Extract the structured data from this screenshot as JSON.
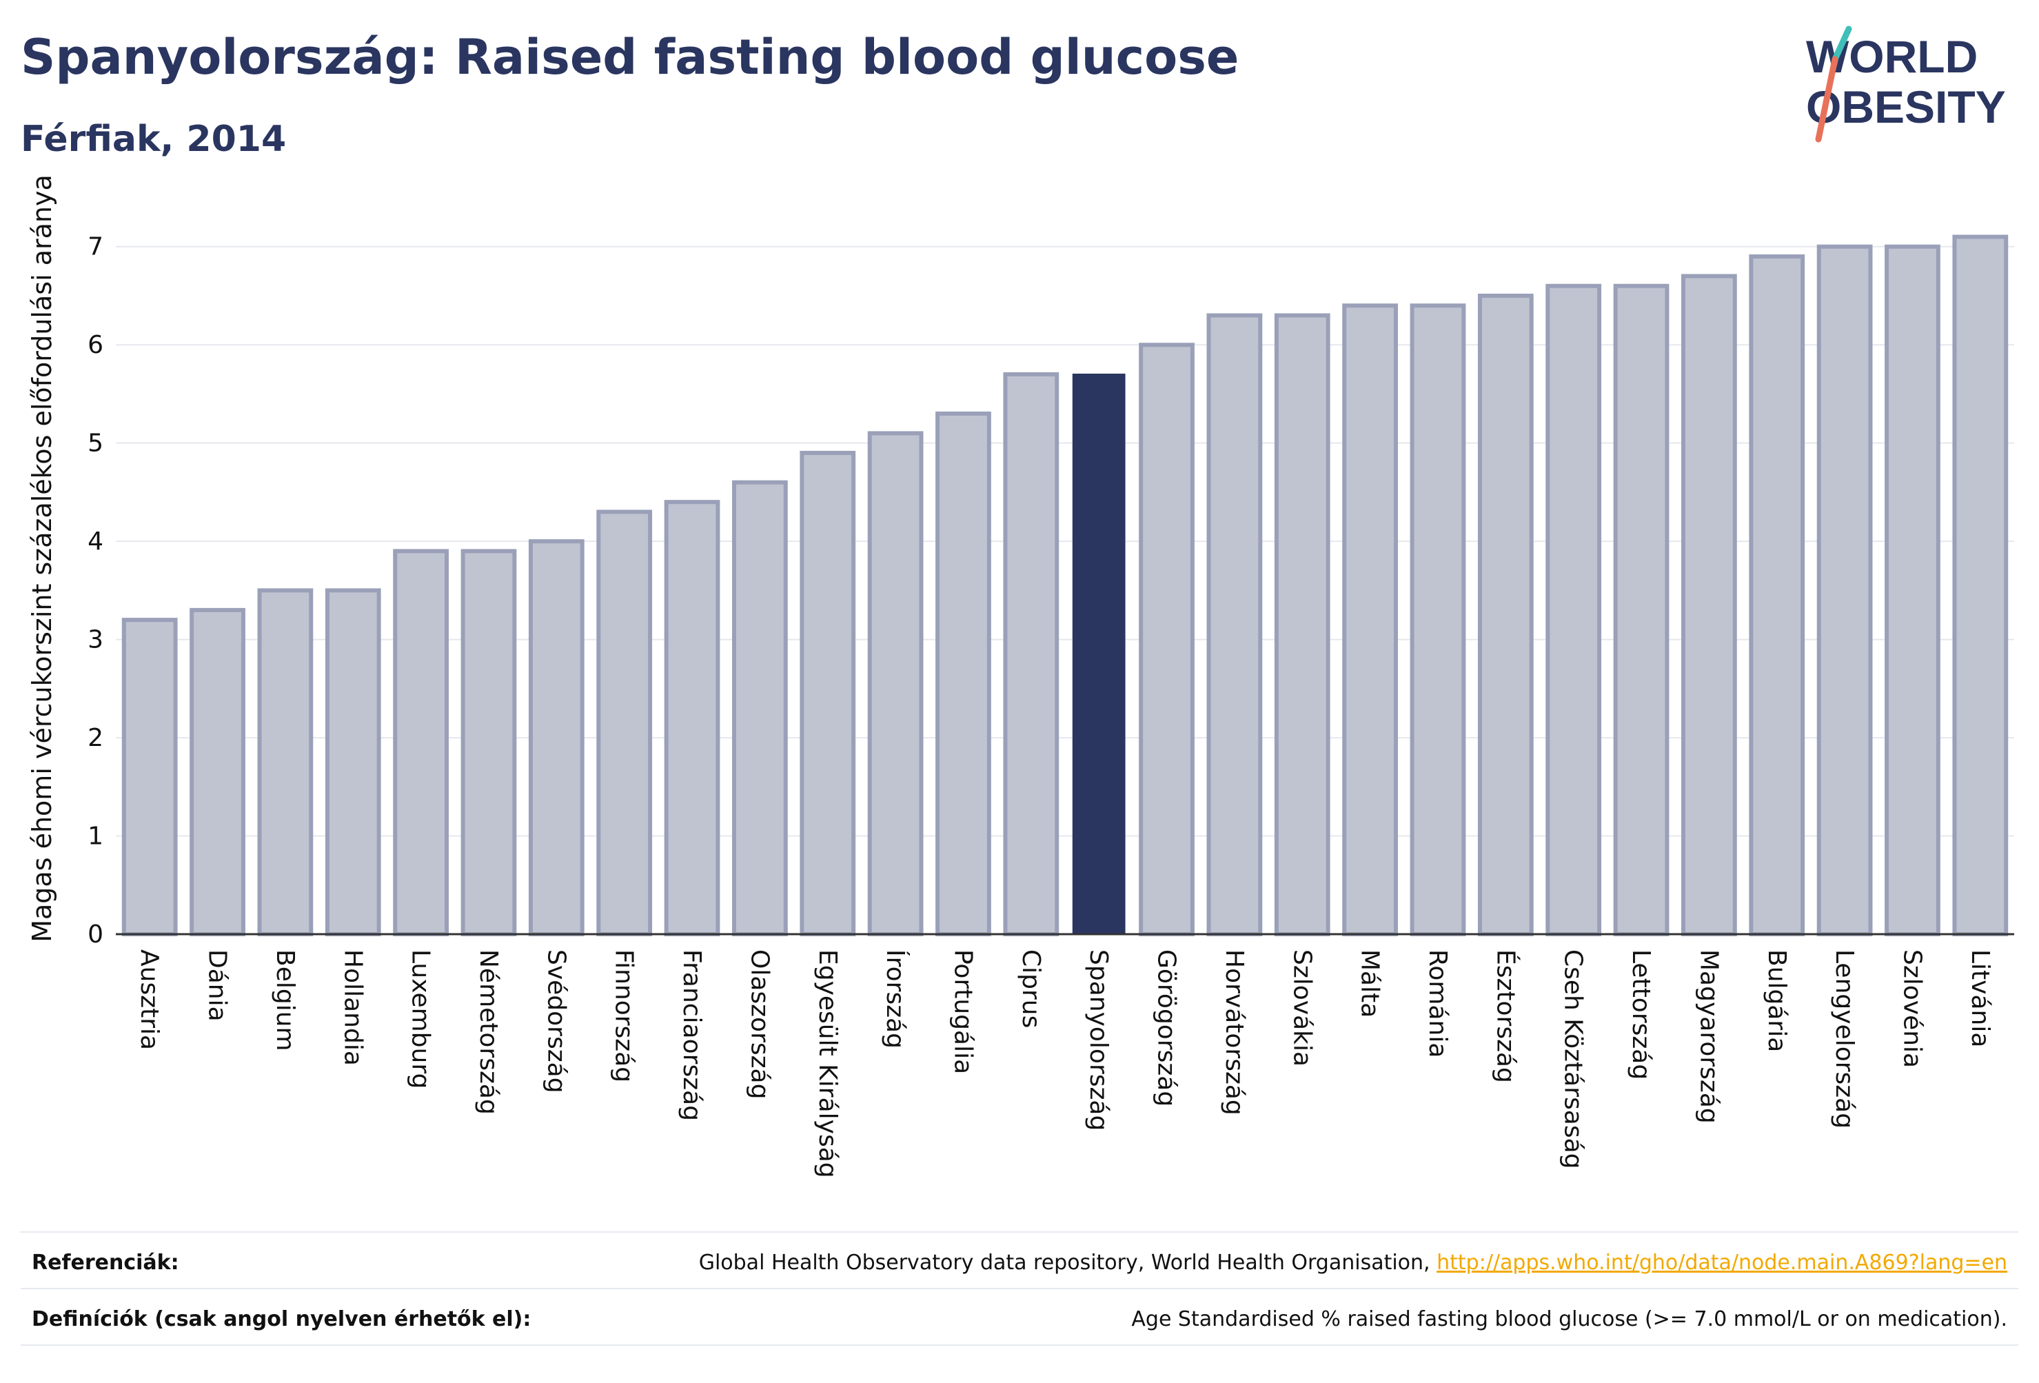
{
  "header": {
    "title": "Spanyolország: Raised fasting blood glucose",
    "subtitle": "Férfiak, 2014"
  },
  "logo": {
    "line1": "WORLD",
    "line2": "OBESITY",
    "accent_teal": "#3fbfb7",
    "accent_coral": "#e8715a"
  },
  "chart_data": {
    "type": "bar",
    "ylabel": "Magas éhomi vércukorszint százalékos előfordulási aránya",
    "xlabel": "",
    "ylim": [
      0,
      7.3
    ],
    "yticks": [
      0,
      1,
      2,
      3,
      4,
      5,
      6,
      7
    ],
    "grid": true,
    "highlight": "Spanyolország",
    "colors": {
      "bar_fill": "#c0c4d1",
      "bar_edge": "#9aa0b8",
      "highlight": "#2a3560"
    },
    "categories": [
      "Ausztria",
      "Dánia",
      "Belgium",
      "Hollandia",
      "Luxemburg",
      "Németország",
      "Svédország",
      "Finnország",
      "Franciaország",
      "Olaszország",
      "Egyesült Királyság",
      "Írország",
      "Portugália",
      "Ciprus",
      "Spanyolország",
      "Görögország",
      "Horvátország",
      "Szlovákia",
      "Málta",
      "Románia",
      "Észtország",
      "Cseh Köztársaság",
      "Lettország",
      "Magyarország",
      "Bulgária",
      "Lengyelország",
      "Szlovénia",
      "Litvánia"
    ],
    "values": [
      3.2,
      3.3,
      3.5,
      3.5,
      3.9,
      3.9,
      4.0,
      4.3,
      4.4,
      4.6,
      4.9,
      5.1,
      5.3,
      5.7,
      5.7,
      6.0,
      6.3,
      6.3,
      6.4,
      6.4,
      6.5,
      6.6,
      6.6,
      6.7,
      6.9,
      7.0,
      7.0,
      7.1
    ]
  },
  "footer": {
    "references_label": "Referenciák:",
    "references_text": "Global Health Observatory data repository, World Health Organisation,",
    "references_link": "http://apps.who.int/gho/data/node.main.A869?lang=en",
    "definitions_label": "Definíciók (csak angol nyelven érhetők el):",
    "definitions_text": "Age Standardised % raised fasting blood glucose (>= 7.0 mmol/L or on medication)."
  }
}
